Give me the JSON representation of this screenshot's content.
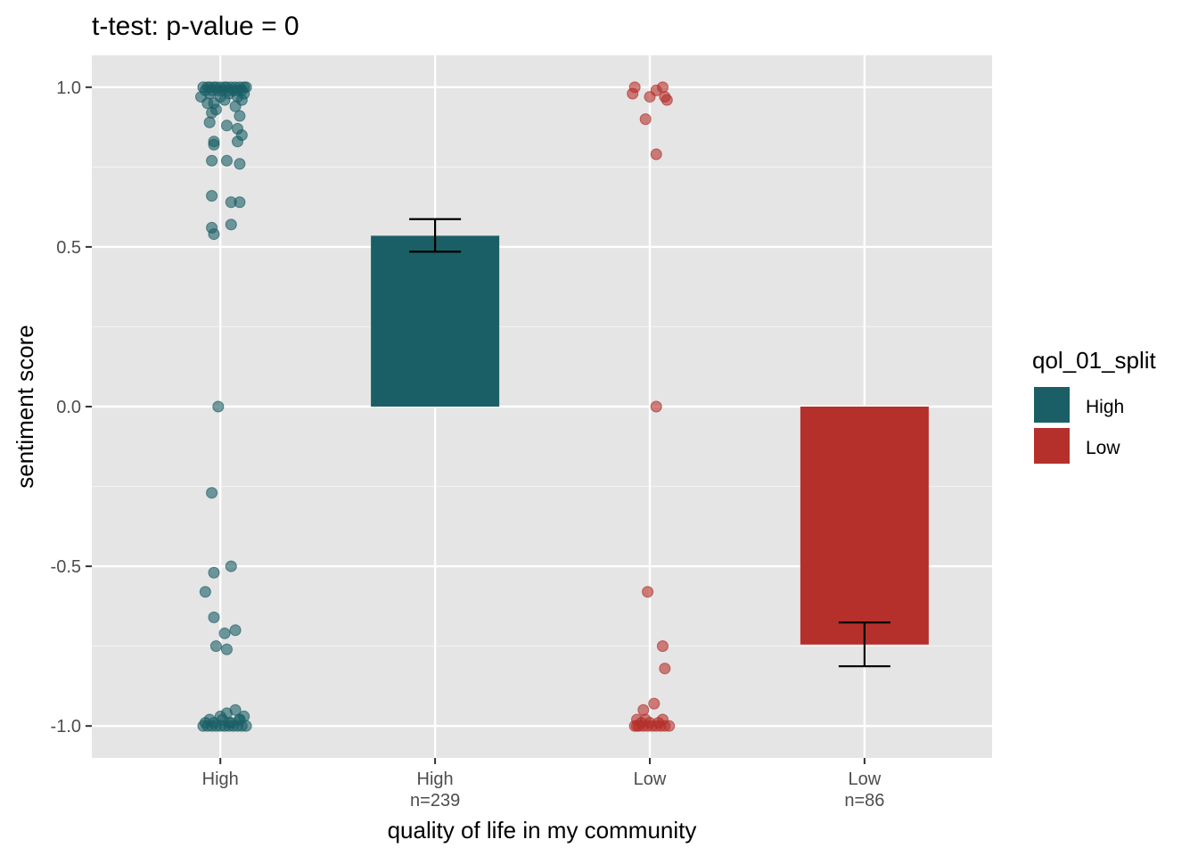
{
  "chart_data": {
    "type": "bar",
    "title": "t-test: p-value = 0",
    "xlabel": "quality of life in my community",
    "ylabel": "sentiment score",
    "ylim": [
      -1.1,
      1.1
    ],
    "yticks": [
      -1.0,
      -0.5,
      0.0,
      0.5,
      1.0
    ],
    "ytick_labels": [
      "-1.0",
      "-0.5",
      "0.0",
      "0.5",
      "1.0"
    ],
    "grid": true,
    "categories": [
      {
        "line1": "High",
        "line2": ""
      },
      {
        "line1": "High",
        "line2": "n=239"
      },
      {
        "line1": "Low",
        "line2": ""
      },
      {
        "line1": "Low",
        "line2": "n=86"
      }
    ],
    "bars": [
      {
        "category_index": 1,
        "group": "High",
        "value": 0.535,
        "error_low": 0.485,
        "error_high": 0.587
      },
      {
        "category_index": 3,
        "group": "Low",
        "value": -0.745,
        "error_low": -0.813,
        "error_high": -0.676
      }
    ],
    "legend": {
      "title": "qol_01_split",
      "position": "right",
      "items": [
        {
          "label": "High",
          "color": "#1b5f66"
        },
        {
          "label": "Low",
          "color": "#b5302b"
        }
      ]
    },
    "colors": {
      "High": "#1b5f66",
      "Low": "#b5302b",
      "panel": "#e5e5e5",
      "grid": "#ffffff",
      "error_bar": "#000000"
    },
    "jitter_points": [
      {
        "group": "High",
        "category_index": 0,
        "x": [
          -0.08,
          -0.06,
          -0.05,
          -0.03,
          -0.02,
          0.0,
          0.02,
          0.03,
          0.05,
          0.07,
          0.09,
          0.11,
          0.12,
          -0.07,
          -0.04,
          -0.01,
          0.01,
          0.04,
          0.06,
          0.08,
          0.1,
          -0.09,
          -0.05,
          0.0,
          0.04,
          0.08,
          0.11,
          -0.06,
          -0.03,
          0.02,
          0.07,
          0.1,
          -0.04,
          -0.02,
          0.09,
          0.08,
          -0.05,
          0.03,
          0.1,
          -0.03,
          -0.03,
          0.08,
          -0.04,
          0.03,
          0.09,
          -0.04,
          0.05,
          -0.04,
          -0.03,
          0.05,
          0.09,
          -0.01,
          -0.07,
          -0.03,
          0.02,
          -0.02,
          0.07,
          0.03,
          -0.04,
          -0.03,
          0.05,
          -0.08,
          -0.06,
          -0.04,
          -0.02,
          0.0,
          0.02,
          0.04,
          0.06,
          0.08,
          0.1,
          0.12,
          -0.07,
          -0.03,
          0.01,
          0.05,
          0.09,
          0.03,
          0.07,
          -0.05,
          0.0,
          0.04,
          0.09,
          0.11
        ],
        "y": [
          1.0,
          1.0,
          1.0,
          1.0,
          1.0,
          1.0,
          1.0,
          1.0,
          1.0,
          1.0,
          1.0,
          1.0,
          1.0,
          0.99,
          0.99,
          0.99,
          0.99,
          0.99,
          0.99,
          0.99,
          0.99,
          0.97,
          0.98,
          0.97,
          0.98,
          0.97,
          0.98,
          0.95,
          0.95,
          0.96,
          0.94,
          0.96,
          0.92,
          0.93,
          0.91,
          0.87,
          0.89,
          0.88,
          0.85,
          0.83,
          0.82,
          0.83,
          0.77,
          0.77,
          0.76,
          0.66,
          0.64,
          0.56,
          0.54,
          0.57,
          0.64,
          0.0,
          -0.58,
          -0.66,
          -0.71,
          -0.75,
          -0.7,
          -0.76,
          -0.27,
          -0.52,
          -0.5,
          -1.0,
          -1.0,
          -1.0,
          -1.0,
          -1.0,
          -1.0,
          -1.0,
          -1.0,
          -1.0,
          -1.0,
          -1.0,
          -0.99,
          -0.99,
          -0.98,
          -0.99,
          -0.98,
          -0.96,
          -0.95,
          -0.98,
          -0.97,
          -0.99,
          -0.98,
          -0.97
        ]
      },
      {
        "group": "Low",
        "category_index": 2,
        "x": [
          -0.08,
          -0.07,
          0.0,
          0.03,
          0.06,
          0.08,
          0.07,
          -0.02,
          0.03,
          0.03,
          -0.01,
          0.06,
          0.07,
          -0.07,
          -0.06,
          -0.05,
          -0.03,
          -0.01,
          0.01,
          0.03,
          0.05,
          0.07,
          0.09,
          -0.04,
          0.0,
          0.04,
          -0.06,
          -0.02,
          0.06,
          -0.03,
          0.02
        ],
        "y": [
          0.98,
          1.0,
          0.97,
          0.99,
          1.0,
          0.96,
          0.97,
          0.9,
          0.79,
          0.0,
          -0.58,
          -0.75,
          -0.82,
          -1.0,
          -1.0,
          -1.0,
          -1.0,
          -1.0,
          -1.0,
          -1.0,
          -1.0,
          -1.0,
          -1.0,
          -0.99,
          -0.99,
          -0.99,
          -0.98,
          -0.98,
          -0.98,
          -0.95,
          -0.93
        ]
      }
    ]
  }
}
